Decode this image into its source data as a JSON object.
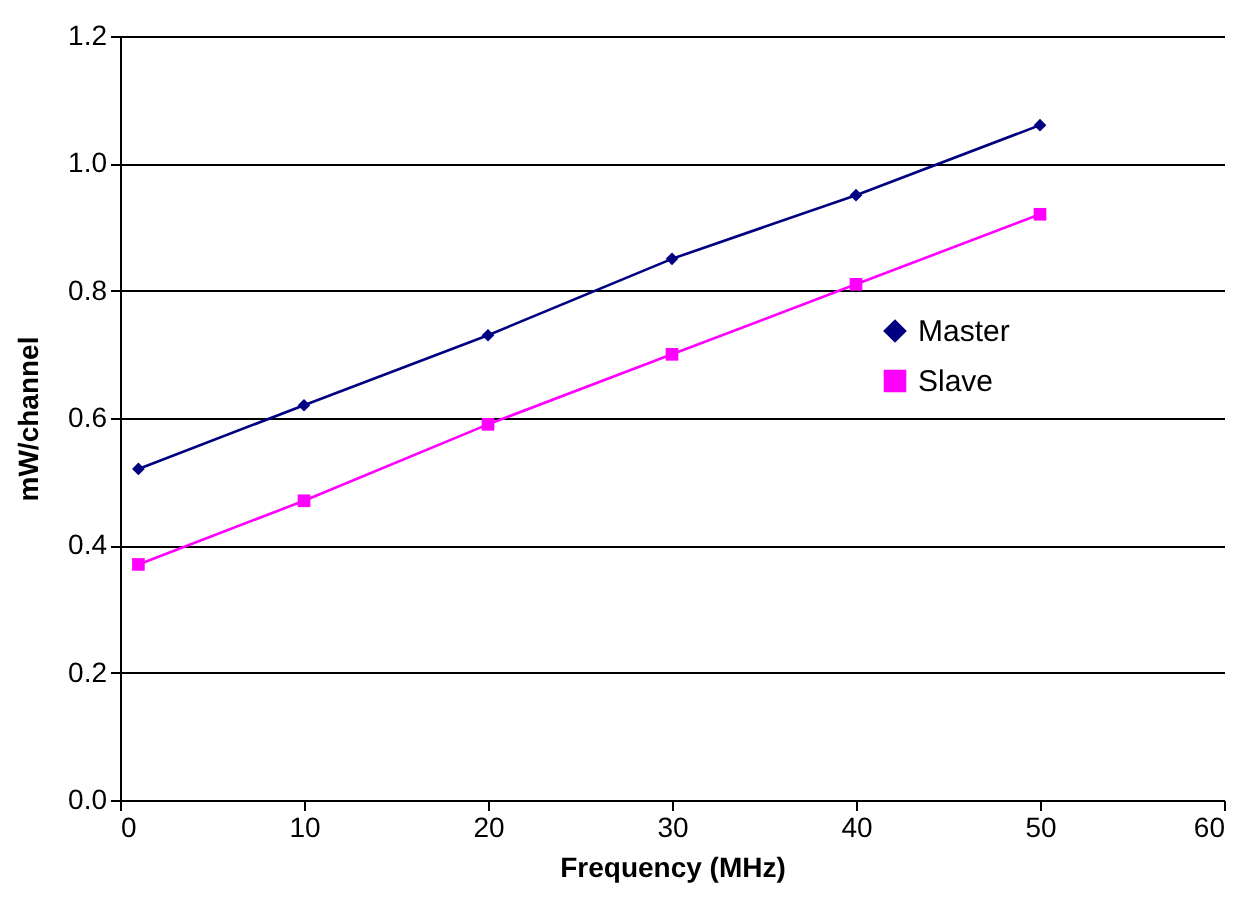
{
  "chart_data": {
    "type": "line",
    "xlabel": "Frequency (MHz)",
    "ylabel": "mW/channel",
    "x": [
      1,
      10,
      20,
      30,
      40,
      50
    ],
    "series": [
      {
        "name": "Master",
        "color": "#000080",
        "marker": "diamond",
        "values": [
          0.52,
          0.62,
          0.73,
          0.85,
          0.95,
          1.06
        ]
      },
      {
        "name": "Slave",
        "color": "#ff00ff",
        "marker": "square",
        "values": [
          0.37,
          0.47,
          0.59,
          0.7,
          0.81,
          0.92
        ]
      }
    ],
    "xlim": [
      0,
      60
    ],
    "xticks": [
      0,
      10,
      20,
      30,
      40,
      50,
      60
    ],
    "ylim": [
      0,
      1.2
    ],
    "yticks": [
      {
        "value": 0,
        "label": "0.0"
      },
      {
        "value": 0.2,
        "label": "0.2"
      },
      {
        "value": 0.4,
        "label": "0.4"
      },
      {
        "value": 0.6,
        "label": "0.6"
      },
      {
        "value": 0.8,
        "label": "0.8"
      },
      {
        "value": 1,
        "label": "1.0"
      },
      {
        "value": 1.2,
        "label": "1.2"
      }
    ],
    "grid": "y",
    "legend": "right",
    "line_style": "solid"
  }
}
